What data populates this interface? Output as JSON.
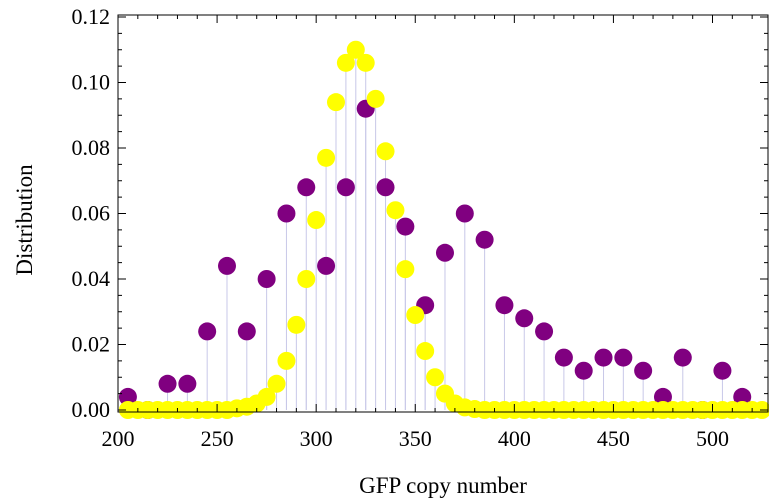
{
  "chart_data": {
    "type": "scatter",
    "title": "",
    "xlabel": "GFP copy number",
    "ylabel": "Distribution",
    "xlim": [
      200,
      528
    ],
    "ylim": [
      0,
      0.12
    ],
    "xticks": [
      200,
      250,
      300,
      350,
      400,
      450,
      500
    ],
    "xtick_labels": [
      "200",
      "250",
      "300",
      "350",
      "400",
      "450",
      "500"
    ],
    "yticks": [
      0,
      0.02,
      0.04,
      0.06,
      0.08,
      0.1,
      0.12
    ],
    "ytick_labels": [
      "0.00",
      "0.02",
      "0.04",
      "0.06",
      "0.08",
      "0.10",
      "0.12"
    ],
    "grid": false,
    "drop_lines": true,
    "drop_line_color": "#c8c8e8",
    "series": [
      {
        "color": "#800080",
        "x": [
          205,
          215,
          225,
          235,
          245,
          255,
          265,
          275,
          285,
          295,
          305,
          315,
          325,
          335,
          345,
          355,
          365,
          375,
          385,
          395,
          405,
          415,
          425,
          435,
          445,
          455,
          465,
          475,
          485,
          495,
          505,
          515
        ],
        "y": [
          0.004,
          0.0,
          0.008,
          0.008,
          0.024,
          0.044,
          0.024,
          0.04,
          0.06,
          0.068,
          0.044,
          0.068,
          0.092,
          0.068,
          0.056,
          0.032,
          0.048,
          0.06,
          0.052,
          0.032,
          0.028,
          0.024,
          0.016,
          0.012,
          0.016,
          0.016,
          0.012,
          0.004,
          0.016,
          0.0,
          0.012,
          0.004
        ]
      },
      {
        "color": "#ffff00",
        "x": [
          205,
          210,
          215,
          220,
          225,
          230,
          235,
          240,
          245,
          250,
          255,
          260,
          265,
          270,
          275,
          280,
          285,
          290,
          295,
          300,
          305,
          310,
          315,
          320,
          325,
          330,
          335,
          340,
          345,
          350,
          355,
          360,
          365,
          370,
          375,
          380,
          385,
          390,
          395,
          400,
          405,
          410,
          415,
          420,
          425,
          430,
          435,
          440,
          445,
          450,
          455,
          460,
          465,
          470,
          475,
          480,
          485,
          490,
          495,
          500,
          505,
          510,
          515,
          520,
          525
        ],
        "y": [
          0,
          0,
          0,
          0,
          0,
          0,
          0,
          0,
          0,
          0,
          0,
          0.0005,
          0.001,
          0.002,
          0.004,
          0.008,
          0.015,
          0.026,
          0.04,
          0.058,
          0.077,
          0.094,
          0.106,
          0.11,
          0.106,
          0.095,
          0.079,
          0.061,
          0.043,
          0.029,
          0.018,
          0.01,
          0.005,
          0.002,
          0.0008,
          0.0003,
          0,
          0,
          0,
          0,
          0,
          0,
          0,
          0,
          0,
          0,
          0,
          0,
          0,
          0,
          0,
          0,
          0,
          0,
          0,
          0,
          0,
          0,
          0,
          0,
          0,
          0,
          0,
          0,
          0
        ]
      }
    ]
  }
}
